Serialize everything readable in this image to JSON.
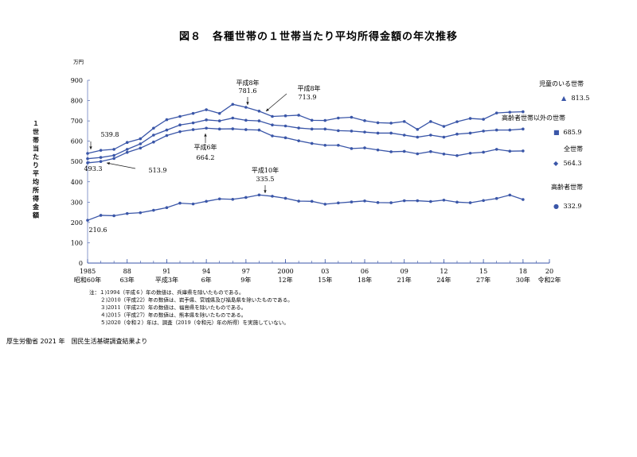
{
  "page": {
    "source": "厚生労働省 2021 年　国民生活基礎調査結果より"
  },
  "chart_data": {
    "type": "line",
    "title": "図８　各種世帯の１世帯当たり平均所得金額の年次推移",
    "ylabel": "１世帯当たり平均所得金額",
    "yunit": "万円",
    "ylim": [
      0,
      900
    ],
    "yticks": [
      0,
      100,
      200,
      300,
      400,
      500,
      600,
      700,
      800,
      900
    ],
    "xlim": [
      1985,
      2020
    ],
    "xticks": [
      {
        "x": 1985,
        "label": "1985",
        "era": "昭和60年"
      },
      {
        "x": 1988,
        "label": "88",
        "era": "63年"
      },
      {
        "x": 1991,
        "label": "91",
        "era": "平成3年"
      },
      {
        "x": 1994,
        "label": "94",
        "era": "6年"
      },
      {
        "x": 1997,
        "label": "97",
        "era": "9年"
      },
      {
        "x": 2000,
        "label": "2000",
        "era": "12年"
      },
      {
        "x": 2003,
        "label": "03",
        "era": "15年"
      },
      {
        "x": 2006,
        "label": "06",
        "era": "18年"
      },
      {
        "x": 2009,
        "label": "09",
        "era": "21年"
      },
      {
        "x": 2012,
        "label": "12",
        "era": "24年"
      },
      {
        "x": 2015,
        "label": "15",
        "era": "27年"
      },
      {
        "x": 2018,
        "label": "18",
        "era": "30年"
      },
      {
        "x": 2020,
        "label": "20",
        "era": "令和2年"
      }
    ],
    "grid": false,
    "x": [
      1985,
      1986,
      1987,
      1988,
      1989,
      1990,
      1991,
      1992,
      1993,
      1994,
      1995,
      1996,
      1997,
      1998,
      1999,
      2000,
      2001,
      2002,
      2003,
      2004,
      2005,
      2006,
      2007,
      2008,
      2009,
      2010,
      2011,
      2012,
      2013,
      2014,
      2015,
      2016,
      2017,
      2018
    ],
    "series": [
      {
        "name": "児童のいる世帯",
        "end_value": "813.5",
        "marker": "▲",
        "color": "#3a56a8",
        "values": [
          539.8,
          555,
          560,
          594,
          612,
          664,
          706,
          722,
          737,
          755,
          737,
          781.6,
          767,
          748,
          722,
          725,
          728,
          703,
          702,
          714,
          718,
          701,
          691,
          689,
          697,
          658,
          697,
          673,
          696,
          712,
          708,
          739,
          743,
          745
        ]
      },
      {
        "name": "高齢者世帯以外の世帯",
        "end_value": "685.9",
        "marker": "■",
        "color": "#3a56a8",
        "values": [
          513.9,
          520,
          530,
          560,
          587,
          630,
          655,
          680,
          690,
          705,
          700,
          713.9,
          703,
          700,
          680,
          675,
          665,
          660,
          660,
          652,
          650,
          645,
          640,
          640,
          630,
          620,
          630,
          620,
          635,
          640,
          650,
          655,
          655,
          660
        ]
      },
      {
        "name": "全世帯",
        "end_value": "564.3",
        "marker": "◆",
        "color": "#3a56a8",
        "values": [
          493.3,
          500,
          515,
          545,
          566,
          596,
          628,
          647,
          657,
          664.2,
          660,
          661,
          657,
          655,
          626,
          617,
          602,
          589,
          580,
          580,
          564,
          567,
          557,
          548,
          550,
          538,
          549,
          537,
          529,
          541,
          546,
          560,
          551,
          552
        ]
      },
      {
        "name": "高齢者世帯",
        "end_value": "332.9",
        "marker": "●",
        "color": "#3a56a8",
        "values": [
          210.6,
          235,
          233,
          244,
          248,
          260,
          273,
          295,
          291,
          304,
          316,
          314,
          323,
          335.5,
          329,
          319,
          305,
          304,
          290,
          296,
          301,
          306,
          298,
          297,
          307,
          307,
          303,
          310,
          300,
          297,
          308,
          318,
          335,
          313
        ]
      }
    ],
    "annotations": [
      {
        "id": "a1",
        "era": "",
        "value": "539.8",
        "x": 1985,
        "y": 539.8
      },
      {
        "id": "a2",
        "era": "",
        "value": "493.3",
        "x": 1985,
        "y": 493.3
      },
      {
        "id": "a3",
        "era": "",
        "value": "513.9",
        "x": 1985,
        "y": 513.9
      },
      {
        "id": "a4",
        "era": "平成8年",
        "value": "781.6",
        "x": 1996,
        "y": 781.6
      },
      {
        "id": "a5",
        "era": "平成8年",
        "value": "713.9",
        "x": 1996,
        "y": 713.9
      },
      {
        "id": "a6",
        "era": "平成6年",
        "value": "664.2",
        "x": 1994,
        "y": 664.2
      },
      {
        "id": "a7",
        "era": "平成10年",
        "value": "335.5",
        "x": 1998,
        "y": 335.5
      },
      {
        "id": "a8",
        "era": "",
        "value": "210.6",
        "x": 1985,
        "y": 210.6
      }
    ],
    "notes": [
      "注：１)1994（平成６）年の数値は、兵庫県を除いたものである。",
      "２)2010（平成22）年の数値は、岩手県、宮城県及び福島県を除いたものである。",
      "３)2011（平成23）年の数値は、福島県を除いたものである。",
      "４)2015（平成27）年の数値は、熊本県を除いたものである。",
      "５)2020（令和２）年は、調査（2019（令和元）年の所得）を実施していない。"
    ]
  }
}
